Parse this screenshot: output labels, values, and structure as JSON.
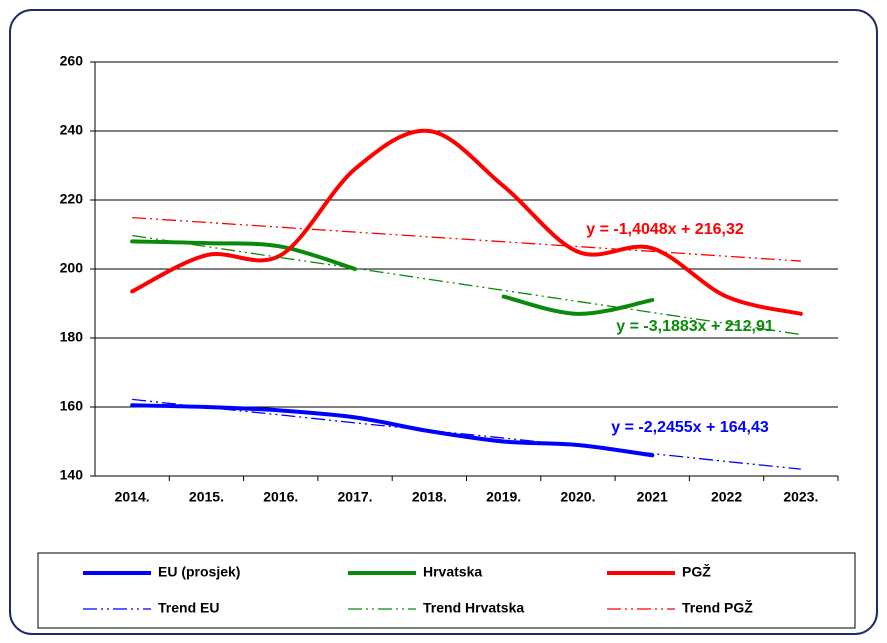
{
  "chart_data": {
    "type": "line",
    "categories": [
      "2014.",
      "2015.",
      "2016.",
      "2017.",
      "2018.",
      "2019.",
      "2020.",
      "2021",
      "2022",
      "2023."
    ],
    "ylim": [
      140,
      260
    ],
    "yticks": [
      140,
      160,
      180,
      200,
      220,
      240,
      260
    ],
    "grid": true,
    "series": [
      {
        "name": "EU (prosjek)",
        "color": "#0000ff",
        "style": "solid",
        "values": [
          160.5,
          160,
          159,
          157,
          153,
          150,
          149,
          146,
          null,
          null
        ]
      },
      {
        "name": "Hrvatska",
        "color": "#0a8a0a",
        "style": "solid",
        "values": [
          208,
          207.5,
          206.5,
          200,
          null,
          192,
          187,
          191,
          null,
          null
        ]
      },
      {
        "name": "PGŽ",
        "color": "#ff0000",
        "style": "solid",
        "values": [
          193.5,
          204,
          204,
          229,
          240,
          224,
          205,
          206,
          192,
          187
        ]
      },
      {
        "name": "Trend EU",
        "color": "#0000ff",
        "style": "dash-dot",
        "equation": "y = -2,2455x + 164,43",
        "values": [
          162.2,
          159.9,
          157.7,
          155.4,
          153.2,
          151.0,
          148.7,
          146.5,
          144.2,
          142.0
        ]
      },
      {
        "name": "Trend Hrvatska",
        "color": "#0a8a0a",
        "style": "dash-dot",
        "equation": "y = -3,1883x + 212,91",
        "values": [
          209.7,
          206.5,
          203.3,
          200.2,
          197.0,
          193.8,
          190.6,
          187.4,
          184.2,
          181.0
        ]
      },
      {
        "name": "Trend PGŽ",
        "color": "#ff0000",
        "style": "dash-dot",
        "equation": "y = -1,4048x + 216,32",
        "values": [
          214.9,
          213.5,
          212.1,
          210.7,
          209.3,
          207.9,
          206.5,
          205.1,
          203.7,
          202.3
        ]
      }
    ]
  }
}
